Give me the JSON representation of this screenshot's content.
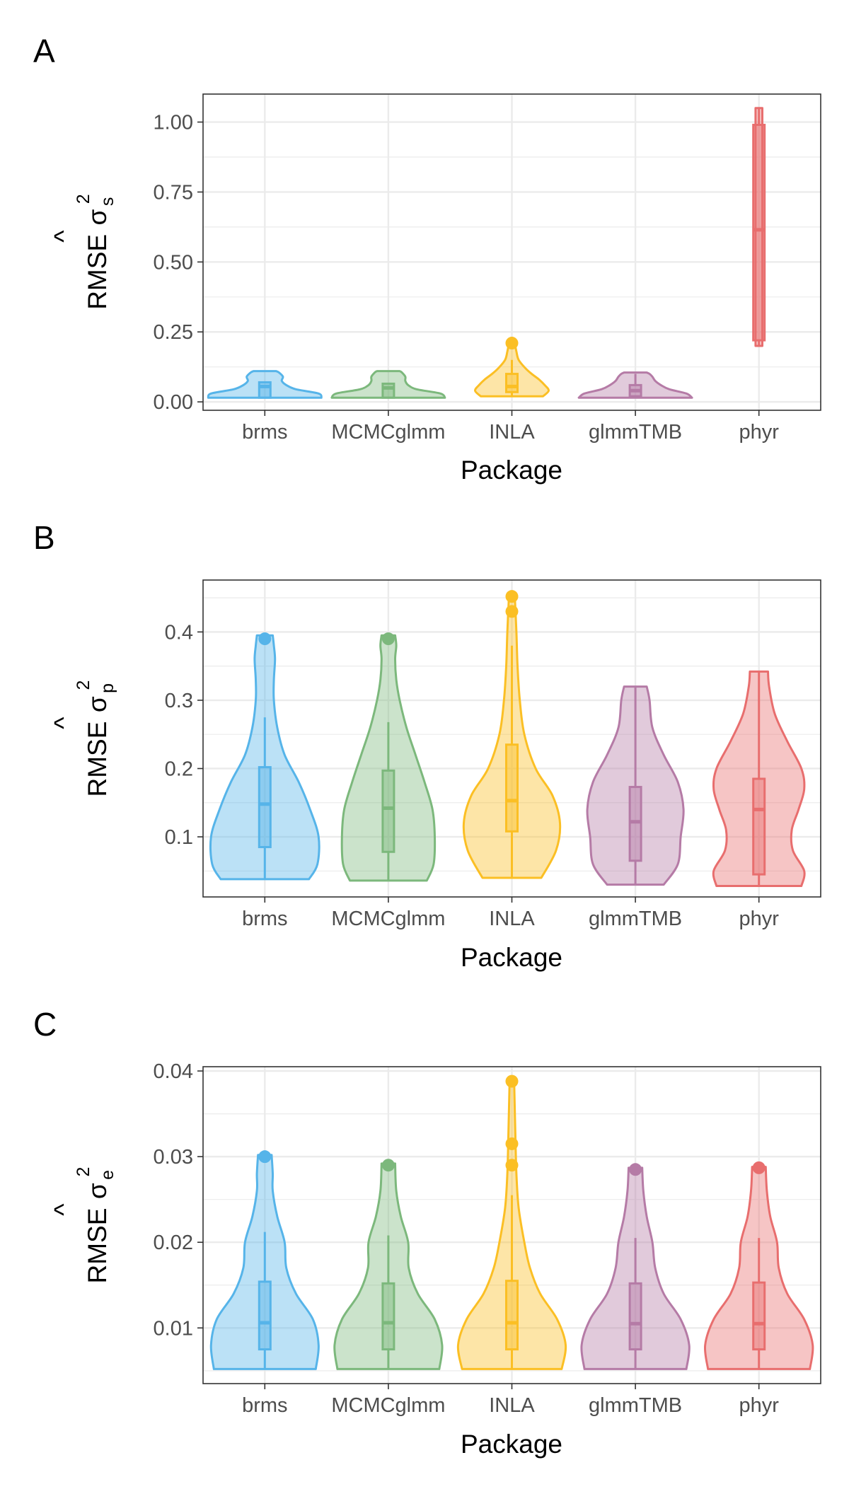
{
  "chart_data": [
    {
      "type": "violin",
      "panel_label": "A",
      "xlabel": "Package",
      "ylabel": {
        "prefix": "RMSE",
        "hat": "^",
        "symbol": "σ",
        "sup": "2",
        "sub": "s"
      },
      "yticks": [
        "0.00",
        "0.25",
        "0.50",
        "0.75",
        "1.00"
      ],
      "ylim": [
        -0.03,
        1.1
      ],
      "grid": true,
      "categories": [
        "brms",
        "MCMCglmm",
        "INLA",
        "glmmTMB",
        "phyr"
      ],
      "colors": [
        "#56B4E9",
        "#7CB87C",
        "#FBBF24",
        "#B57BA6",
        "#E86E6E"
      ],
      "series": [
        {
          "min": 0.015,
          "max": 0.11,
          "q1": 0.015,
          "median": 0.055,
          "q3": 0.07,
          "whisker_low": 0.015,
          "whisker_high": 0.07,
          "outliers": [],
          "density": [
            [
              0.015,
              1.0
            ],
            [
              0.03,
              0.95
            ],
            [
              0.045,
              0.55
            ],
            [
              0.06,
              0.38
            ],
            [
              0.075,
              0.3
            ],
            [
              0.09,
              0.32
            ],
            [
              0.105,
              0.25
            ],
            [
              0.11,
              0.2
            ]
          ]
        },
        {
          "min": 0.015,
          "max": 0.11,
          "q1": 0.015,
          "median": 0.05,
          "q3": 0.065,
          "whisker_low": 0.015,
          "whisker_high": 0.065,
          "outliers": [],
          "density": [
            [
              0.015,
              1.0
            ],
            [
              0.03,
              0.92
            ],
            [
              0.045,
              0.5
            ],
            [
              0.06,
              0.35
            ],
            [
              0.075,
              0.3
            ],
            [
              0.09,
              0.3
            ],
            [
              0.105,
              0.24
            ],
            [
              0.11,
              0.2
            ]
          ]
        },
        {
          "min": 0.02,
          "max": 0.21,
          "q1": 0.035,
          "median": 0.055,
          "q3": 0.1,
          "whisker_low": 0.02,
          "whisker_high": 0.15,
          "outliers": [
            0.21
          ],
          "density": [
            [
              0.02,
              0.55
            ],
            [
              0.04,
              0.65
            ],
            [
              0.06,
              0.58
            ],
            [
              0.08,
              0.48
            ],
            [
              0.1,
              0.35
            ],
            [
              0.12,
              0.24
            ],
            [
              0.15,
              0.12
            ],
            [
              0.18,
              0.08
            ],
            [
              0.21,
              0.05
            ]
          ]
        },
        {
          "min": 0.015,
          "max": 0.105,
          "q1": 0.02,
          "median": 0.04,
          "q3": 0.06,
          "whisker_low": 0.015,
          "whisker_high": 0.1,
          "outliers": [],
          "density": [
            [
              0.015,
              1.0
            ],
            [
              0.03,
              0.9
            ],
            [
              0.045,
              0.6
            ],
            [
              0.06,
              0.45
            ],
            [
              0.075,
              0.35
            ],
            [
              0.09,
              0.3
            ],
            [
              0.1,
              0.25
            ],
            [
              0.105,
              0.2
            ]
          ]
        },
        {
          "min": 0.2,
          "max": 1.05,
          "q1": 0.22,
          "median": 0.615,
          "q3": 0.99,
          "whisker_low": 0.2,
          "whisker_high": 1.05,
          "outliers": [],
          "density": [
            [
              0.2,
              0.06
            ],
            [
              0.3,
              0.06
            ],
            [
              0.5,
              0.06
            ],
            [
              0.7,
              0.06
            ],
            [
              0.9,
              0.06
            ],
            [
              1.05,
              0.06
            ]
          ]
        }
      ]
    },
    {
      "type": "violin",
      "panel_label": "B",
      "xlabel": "Package",
      "ylabel": {
        "prefix": "RMSE",
        "hat": "^",
        "symbol": "σ",
        "sup": "2",
        "sub": "p"
      },
      "yticks": [
        "0.1",
        "0.2",
        "0.3",
        "0.4"
      ],
      "ylim": [
        0.012,
        0.476
      ],
      "grid": true,
      "categories": [
        "brms",
        "MCMCglmm",
        "INLA",
        "glmmTMB",
        "phyr"
      ],
      "colors": [
        "#56B4E9",
        "#7CB87C",
        "#FBBF24",
        "#B57BA6",
        "#E86E6E"
      ],
      "series": [
        {
          "min": 0.038,
          "max": 0.395,
          "q1": 0.085,
          "median": 0.148,
          "q3": 0.202,
          "whisker_low": 0.038,
          "whisker_high": 0.275,
          "outliers": [
            0.39
          ],
          "density": [
            [
              0.038,
              0.78
            ],
            [
              0.06,
              0.93
            ],
            [
              0.1,
              0.95
            ],
            [
              0.14,
              0.8
            ],
            [
              0.18,
              0.6
            ],
            [
              0.22,
              0.35
            ],
            [
              0.26,
              0.22
            ],
            [
              0.3,
              0.16
            ],
            [
              0.33,
              0.16
            ],
            [
              0.36,
              0.18
            ],
            [
              0.38,
              0.16
            ],
            [
              0.395,
              0.14
            ]
          ]
        },
        {
          "min": 0.036,
          "max": 0.395,
          "q1": 0.078,
          "median": 0.142,
          "q3": 0.197,
          "whisker_low": 0.036,
          "whisker_high": 0.268,
          "outliers": [
            0.39
          ],
          "density": [
            [
              0.036,
              0.68
            ],
            [
              0.06,
              0.8
            ],
            [
              0.1,
              0.82
            ],
            [
              0.14,
              0.78
            ],
            [
              0.18,
              0.64
            ],
            [
              0.22,
              0.48
            ],
            [
              0.26,
              0.32
            ],
            [
              0.3,
              0.2
            ],
            [
              0.33,
              0.14
            ],
            [
              0.36,
              0.12
            ],
            [
              0.38,
              0.14
            ],
            [
              0.395,
              0.12
            ]
          ]
        },
        {
          "min": 0.04,
          "max": 0.455,
          "q1": 0.108,
          "median": 0.153,
          "q3": 0.235,
          "whisker_low": 0.04,
          "whisker_high": 0.38,
          "outliers": [
            0.43,
            0.452
          ],
          "density": [
            [
              0.04,
              0.52
            ],
            [
              0.08,
              0.78
            ],
            [
              0.12,
              0.85
            ],
            [
              0.16,
              0.72
            ],
            [
              0.2,
              0.42
            ],
            [
              0.25,
              0.22
            ],
            [
              0.3,
              0.14
            ],
            [
              0.35,
              0.1
            ],
            [
              0.4,
              0.08
            ],
            [
              0.455,
              0.05
            ]
          ]
        },
        {
          "min": 0.03,
          "max": 0.32,
          "q1": 0.065,
          "median": 0.122,
          "q3": 0.173,
          "whisker_low": 0.03,
          "whisker_high": 0.32,
          "outliers": [],
          "density": [
            [
              0.03,
              0.5
            ],
            [
              0.06,
              0.75
            ],
            [
              0.1,
              0.8
            ],
            [
              0.14,
              0.85
            ],
            [
              0.18,
              0.75
            ],
            [
              0.22,
              0.5
            ],
            [
              0.26,
              0.3
            ],
            [
              0.3,
              0.25
            ],
            [
              0.32,
              0.2
            ]
          ]
        },
        {
          "min": 0.028,
          "max": 0.342,
          "q1": 0.045,
          "median": 0.14,
          "q3": 0.185,
          "whisker_low": 0.028,
          "whisker_high": 0.342,
          "outliers": [],
          "density": [
            [
              0.028,
              0.75
            ],
            [
              0.05,
              0.8
            ],
            [
              0.08,
              0.6
            ],
            [
              0.11,
              0.58
            ],
            [
              0.14,
              0.7
            ],
            [
              0.17,
              0.8
            ],
            [
              0.2,
              0.75
            ],
            [
              0.24,
              0.5
            ],
            [
              0.28,
              0.28
            ],
            [
              0.32,
              0.18
            ],
            [
              0.342,
              0.16
            ]
          ]
        }
      ]
    },
    {
      "type": "violin",
      "panel_label": "C",
      "xlabel": "Package",
      "ylabel": {
        "prefix": "RMSE",
        "hat": "^",
        "symbol": "σ",
        "sup": "2",
        "sub": "e"
      },
      "yticks": [
        "0.01",
        "0.02",
        "0.03",
        "0.04"
      ],
      "ylim": [
        0.0035,
        0.0405
      ],
      "grid": true,
      "categories": [
        "brms",
        "MCMCglmm",
        "INLA",
        "glmmTMB",
        "phyr"
      ],
      "colors": [
        "#56B4E9",
        "#7CB87C",
        "#FBBF24",
        "#B57BA6",
        "#E86E6E"
      ],
      "series": [
        {
          "min": 0.0052,
          "max": 0.0302,
          "q1": 0.0075,
          "median": 0.0106,
          "q3": 0.0154,
          "whisker_low": 0.0052,
          "whisker_high": 0.0212,
          "outliers": [
            0.03
          ],
          "density": [
            [
              0.0052,
              0.9
            ],
            [
              0.008,
              0.95
            ],
            [
              0.011,
              0.85
            ],
            [
              0.014,
              0.55
            ],
            [
              0.017,
              0.38
            ],
            [
              0.02,
              0.35
            ],
            [
              0.023,
              0.22
            ],
            [
              0.026,
              0.14
            ],
            [
              0.028,
              0.14
            ],
            [
              0.0302,
              0.12
            ]
          ]
        },
        {
          "min": 0.0052,
          "max": 0.0292,
          "q1": 0.0075,
          "median": 0.0106,
          "q3": 0.0152,
          "whisker_low": 0.0052,
          "whisker_high": 0.0208,
          "outliers": [
            0.029
          ],
          "density": [
            [
              0.0052,
              0.9
            ],
            [
              0.008,
              0.95
            ],
            [
              0.011,
              0.82
            ],
            [
              0.014,
              0.52
            ],
            [
              0.017,
              0.36
            ],
            [
              0.02,
              0.35
            ],
            [
              0.023,
              0.22
            ],
            [
              0.026,
              0.14
            ],
            [
              0.0292,
              0.12
            ]
          ]
        },
        {
          "min": 0.0052,
          "max": 0.0388,
          "q1": 0.0075,
          "median": 0.0106,
          "q3": 0.0155,
          "whisker_low": 0.0052,
          "whisker_high": 0.0255,
          "outliers": [
            0.029,
            0.0315,
            0.0388
          ],
          "density": [
            [
              0.0052,
              0.88
            ],
            [
              0.008,
              0.95
            ],
            [
              0.011,
              0.8
            ],
            [
              0.014,
              0.5
            ],
            [
              0.017,
              0.32
            ],
            [
              0.02,
              0.22
            ],
            [
              0.024,
              0.12
            ],
            [
              0.028,
              0.08
            ],
            [
              0.033,
              0.06
            ],
            [
              0.0388,
              0.04
            ]
          ]
        },
        {
          "min": 0.0052,
          "max": 0.0287,
          "q1": 0.0075,
          "median": 0.0105,
          "q3": 0.0152,
          "whisker_low": 0.0052,
          "whisker_high": 0.0205,
          "outliers": [
            0.0285
          ],
          "density": [
            [
              0.0052,
              0.9
            ],
            [
              0.008,
              0.95
            ],
            [
              0.011,
              0.8
            ],
            [
              0.014,
              0.5
            ],
            [
              0.017,
              0.35
            ],
            [
              0.02,
              0.3
            ],
            [
              0.023,
              0.2
            ],
            [
              0.026,
              0.14
            ],
            [
              0.0287,
              0.12
            ]
          ]
        },
        {
          "min": 0.0052,
          "max": 0.0288,
          "q1": 0.0075,
          "median": 0.0105,
          "q3": 0.0153,
          "whisker_low": 0.0052,
          "whisker_high": 0.0205,
          "outliers": [
            0.0287
          ],
          "density": [
            [
              0.0052,
              0.9
            ],
            [
              0.008,
              0.95
            ],
            [
              0.011,
              0.8
            ],
            [
              0.014,
              0.5
            ],
            [
              0.017,
              0.35
            ],
            [
              0.02,
              0.32
            ],
            [
              0.023,
              0.2
            ],
            [
              0.026,
              0.14
            ],
            [
              0.0288,
              0.12
            ]
          ]
        }
      ]
    }
  ]
}
